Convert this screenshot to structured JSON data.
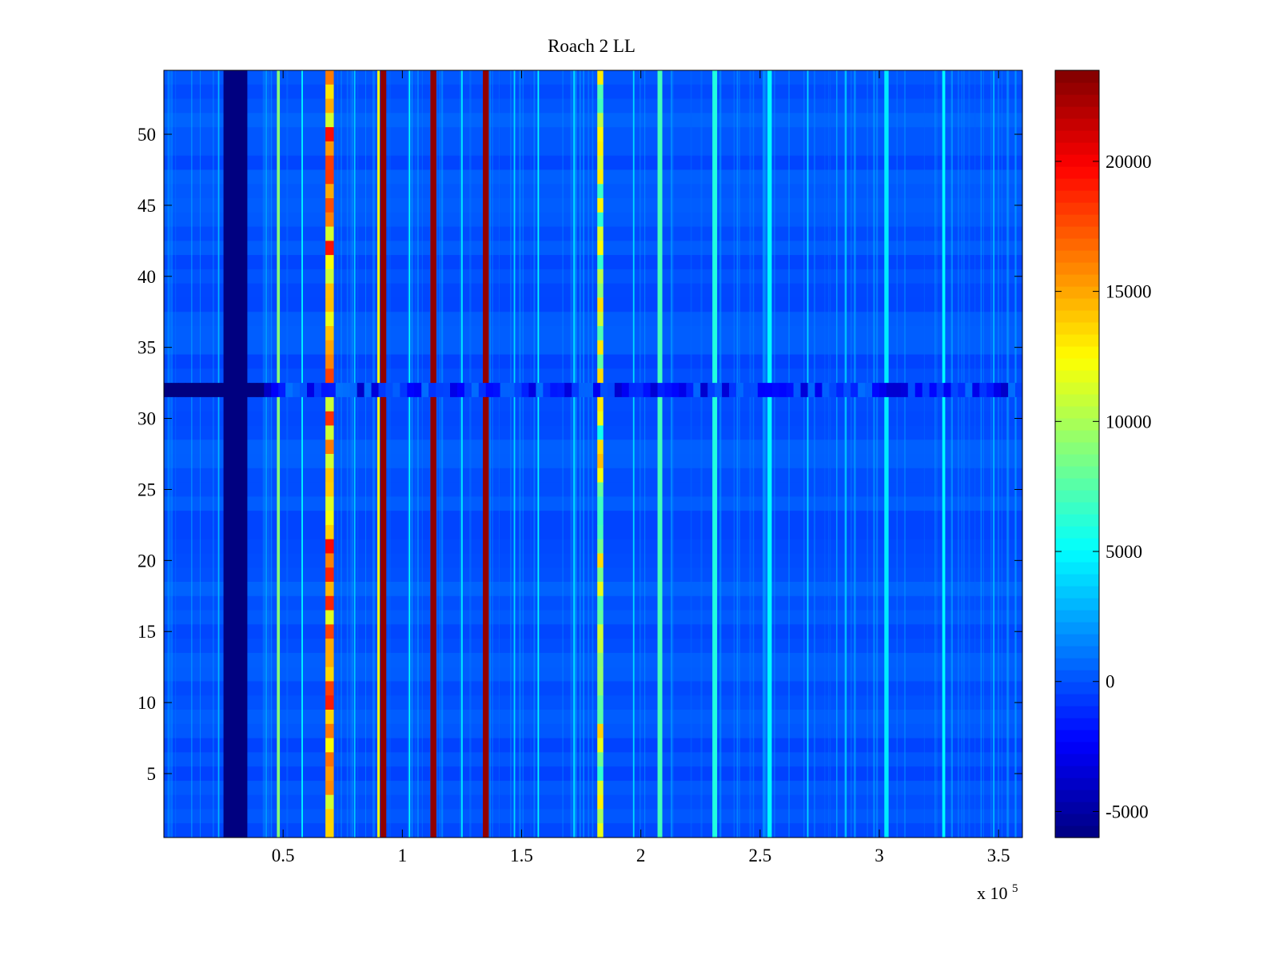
{
  "chart_data": {
    "type": "heatmap",
    "title": "Roach 2 LL",
    "xlabel": "",
    "ylabel": "",
    "x_exponent_label": "x 10",
    "x_exponent_power": "5",
    "xlim": [
      0,
      3.6
    ],
    "ylim": [
      0.5,
      54.5
    ],
    "x_ticks": [
      0.5,
      1,
      1.5,
      2,
      2.5,
      3,
      3.5
    ],
    "x_tick_labels": [
      "0.5",
      "1",
      "1.5",
      "2",
      "2.5",
      "3",
      "3.5"
    ],
    "y_ticks": [
      5,
      10,
      15,
      20,
      25,
      30,
      35,
      40,
      45,
      50
    ],
    "y_tick_labels": [
      "5",
      "10",
      "15",
      "20",
      "25",
      "30",
      "35",
      "40",
      "45",
      "50"
    ],
    "rows": 54,
    "background_value": 0,
    "colorbar": {
      "min": -6000,
      "max": 23500,
      "colormap": "jet",
      "ticks": [
        -5000,
        0,
        5000,
        10000,
        15000,
        20000
      ],
      "tick_labels": [
        "-5000",
        "0",
        "5000",
        "10000",
        "15000",
        "20000"
      ]
    },
    "low_row": {
      "row": 32,
      "value": -2500
    },
    "columns": [
      {
        "x": 0.23,
        "width": 0.005,
        "value": 3000
      },
      {
        "x": 0.3,
        "width": 0.1,
        "value": -6000
      },
      {
        "x": 0.48,
        "width": 0.012,
        "value": 9000
      },
      {
        "x": 0.58,
        "width": 0.006,
        "value": 5000
      },
      {
        "x": 0.695,
        "width": 0.035,
        "value": 14000,
        "varying": true
      },
      {
        "x": 0.8,
        "width": 0.006,
        "value": 3500
      },
      {
        "x": 0.9,
        "width": 0.01,
        "value": 12000
      },
      {
        "x": 0.92,
        "width": 0.025,
        "value": 23000
      },
      {
        "x": 1.03,
        "width": 0.006,
        "value": 5000
      },
      {
        "x": 1.13,
        "width": 0.025,
        "value": 23000
      },
      {
        "x": 1.25,
        "width": 0.006,
        "value": 4500
      },
      {
        "x": 1.35,
        "width": 0.025,
        "value": 23000
      },
      {
        "x": 1.47,
        "width": 0.006,
        "value": 4000
      },
      {
        "x": 1.57,
        "width": 0.006,
        "value": 5000
      },
      {
        "x": 1.72,
        "width": 0.006,
        "value": 4000
      },
      {
        "x": 1.83,
        "width": 0.025,
        "value": 8500,
        "varying": true
      },
      {
        "x": 1.97,
        "width": 0.006,
        "value": 4000
      },
      {
        "x": 2.08,
        "width": 0.02,
        "value": 7000
      },
      {
        "x": 2.31,
        "width": 0.02,
        "value": 6000
      },
      {
        "x": 2.54,
        "width": 0.018,
        "value": 5000
      },
      {
        "x": 2.7,
        "width": 0.006,
        "value": 4000
      },
      {
        "x": 2.86,
        "width": 0.006,
        "value": 3500
      },
      {
        "x": 3.03,
        "width": 0.018,
        "value": 4500
      },
      {
        "x": 3.27,
        "width": 0.012,
        "value": 5000
      },
      {
        "x": 3.48,
        "width": 0.006,
        "value": 3000
      }
    ]
  }
}
